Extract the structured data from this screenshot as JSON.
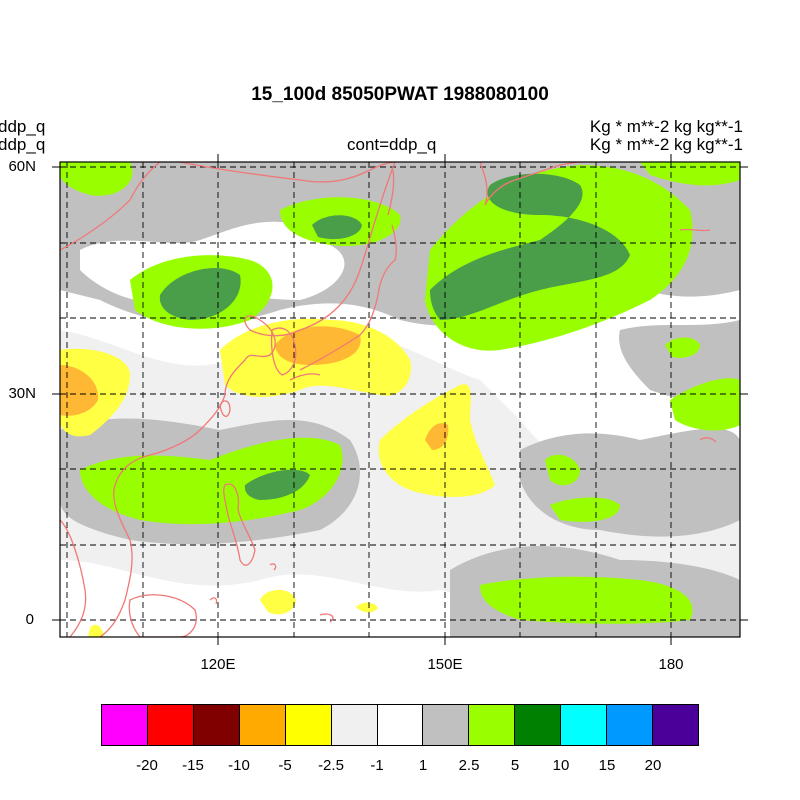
{
  "title": "15_100d 85050PWAT  1988080100",
  "left_labels": [
    "ddp_q",
    "ddp_q"
  ],
  "center_label": "cont=ddp_q",
  "right_labels": [
    "Kg  * m**-2 kg kg**-1",
    "Kg  * m**-2 kg kg**-1"
  ],
  "lat_labels": [
    "60N",
    "30N",
    "0"
  ],
  "lon_labels": [
    "120E",
    "150E",
    "180"
  ],
  "colorbar": {
    "colors": [
      "#ff00ff",
      "#ff0000",
      "#800000",
      "#ffaa00",
      "#ffff00",
      "#f0f0f0",
      "#ffffff",
      "#c0c0c0",
      "#99ff00",
      "#008000",
      "#00ffff",
      "#0099ff",
      "#4b0099"
    ],
    "labels": [
      "-20",
      "-15",
      "-10",
      "-5",
      "-2.5",
      "-1",
      "1",
      "2.5",
      "5",
      "10",
      "15",
      "20"
    ]
  }
}
